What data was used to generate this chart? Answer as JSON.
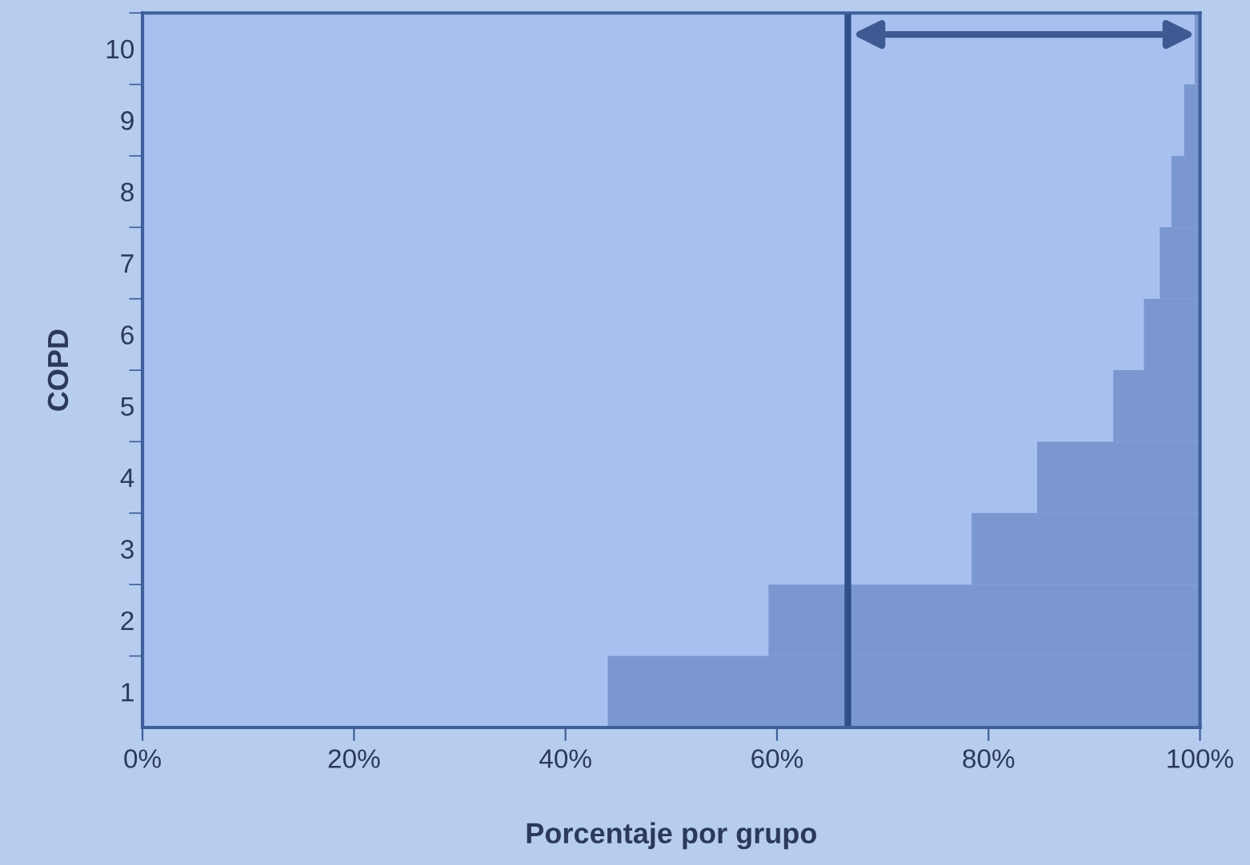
{
  "chart_data": {
    "type": "bar",
    "orientation": "horizontal",
    "xlabel": "Porcentaje por grupo",
    "ylabel": "COPD",
    "categories": [
      "10",
      "9",
      "8",
      "7",
      "6",
      "5",
      "4",
      "3",
      "2",
      "1"
    ],
    "base": [
      99.5,
      98.5,
      97.3,
      96.2,
      94.7,
      91.8,
      84.6,
      78.4,
      59.2,
      44.0
    ],
    "values": [
      0.5,
      1.5,
      2.7,
      3.8,
      5.3,
      8.2,
      15.4,
      21.6,
      40.8,
      56.0
    ],
    "color": "#7b97d0",
    "xlim": [
      0,
      100
    ],
    "xticks": [
      {
        "value": 0,
        "label": "0%"
      },
      {
        "value": 20,
        "label": "20%"
      },
      {
        "value": 40,
        "label": "40%"
      },
      {
        "value": 60,
        "label": "60%"
      },
      {
        "value": 80,
        "label": "80%"
      },
      {
        "value": 100,
        "label": "100%"
      }
    ],
    "ref_lines": [
      {
        "axis": "x",
        "value": 66.7,
        "color": "#2f4f8a"
      }
    ],
    "grid": false,
    "legend": false
  }
}
